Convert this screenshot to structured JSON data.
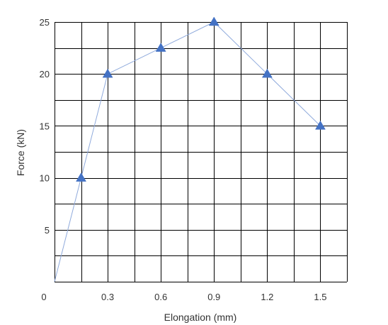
{
  "chart_data": {
    "type": "line",
    "xlabel": "Elongation (mm)",
    "ylabel": "Force (kN)",
    "xlim": [
      0,
      1.65
    ],
    "ylim": [
      0,
      25
    ],
    "x_ticks": [
      0,
      0.3,
      0.6,
      0.9,
      1.2,
      1.5
    ],
    "x_tick_labels": [
      "0",
      "0.3",
      "0.6",
      "0.9",
      "1.2",
      "1.5"
    ],
    "y_ticks": [
      5,
      10,
      15,
      20,
      25
    ],
    "y_tick_labels": [
      "5",
      "10",
      "15",
      "20",
      "25"
    ],
    "grid": true,
    "series": [
      {
        "x": [
          0,
          0.15,
          0.3,
          0.6,
          0.9,
          1.2,
          1.5
        ],
        "y": [
          0,
          10,
          20,
          22.5,
          25,
          20,
          15
        ],
        "markers": [
          false,
          true,
          true,
          true,
          true,
          true,
          true
        ],
        "marker": "triangle",
        "line_color": "#8faadc",
        "marker_color": "#4472c4"
      }
    ]
  }
}
